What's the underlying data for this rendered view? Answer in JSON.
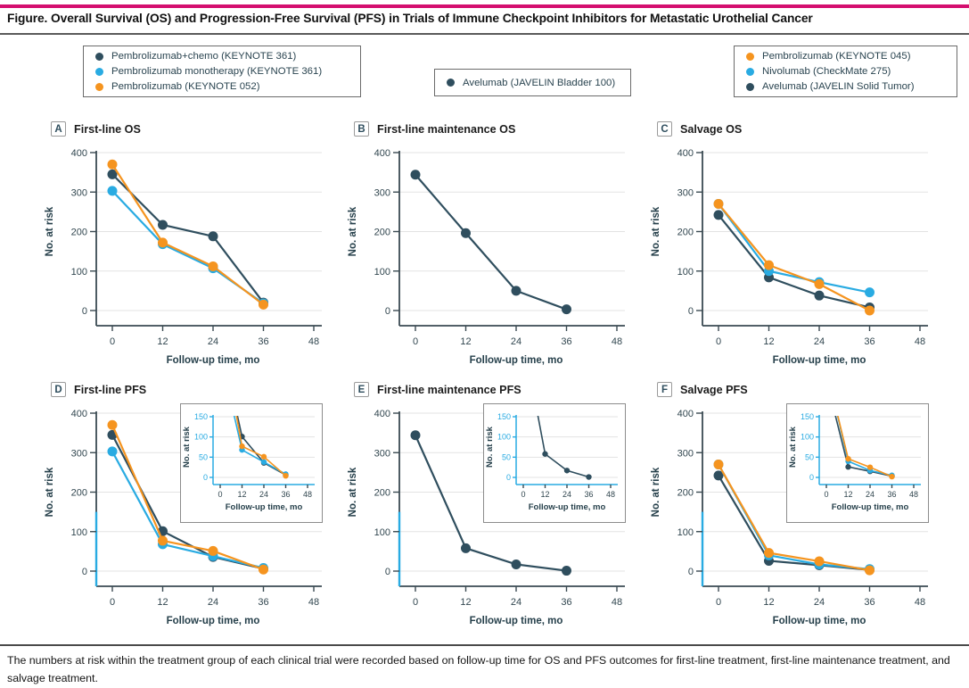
{
  "header": {
    "title": "Figure. Overall Survival (OS) and Progression-Free Survival (PFS) in Trials of Immune Checkpoint Inhibitors for Metastatic Urothelial Cancer"
  },
  "footnote": "The numbers at risk within the treatment group of each clinical trial were recorded based on follow-up time for OS and PFS outcomes for first-line treatment, first-line maintenance treatment, and salvage treatment.",
  "colors": {
    "navy": "#2f4e5e",
    "blue": "#29abe2",
    "orange": "#f5941f",
    "accent_rule": "#d40f6f",
    "grid": "#e3e3e3",
    "axis": "#3a4a52",
    "tick_text": "#31464f",
    "axis_label": "#26404b",
    "inset_axis": "#29abe2"
  },
  "legends": [
    {
      "position": "left",
      "items": [
        {
          "label": "Pembrolizumab+chemo (KEYNOTE 361)",
          "color": "navy"
        },
        {
          "label": "Pembrolizumab monotherapy (KEYNOTE 361)",
          "color": "blue"
        },
        {
          "label": "Pembrolizumab (KEYNOTE 052)",
          "color": "orange"
        }
      ]
    },
    {
      "position": "center",
      "items": [
        {
          "label": "Avelumab (JAVELIN Bladder 100)",
          "color": "navy"
        }
      ]
    },
    {
      "position": "right",
      "items": [
        {
          "label": "Pembrolizumab (KEYNOTE 045)",
          "color": "orange"
        },
        {
          "label": "Nivolumab (CheckMate 275)",
          "color": "blue"
        },
        {
          "label": "Avelumab (JAVELIN Solid Tumor)",
          "color": "navy"
        }
      ]
    }
  ],
  "chart_data": [
    {
      "type": "line",
      "panel": "A",
      "title": "First-line OS",
      "xlabel": "Follow-up time, mo",
      "ylabel": "No. at risk",
      "x": [
        0,
        12,
        24,
        36
      ],
      "xticks": [
        0,
        12,
        24,
        36,
        48
      ],
      "yticks": [
        0,
        100,
        200,
        300,
        400
      ],
      "ylim": [
        0,
        400
      ],
      "grid": "horizontal",
      "zoom_region": null,
      "inset": null,
      "series": [
        {
          "name": "Pembrolizumab+chemo (KEYNOTE 361)",
          "color": "navy",
          "values": [
            345,
            217,
            188,
            20
          ]
        },
        {
          "name": "Pembrolizumab monotherapy (KEYNOTE 361)",
          "color": "blue",
          "values": [
            303,
            168,
            107,
            18
          ]
        },
        {
          "name": "Pembrolizumab (KEYNOTE 052)",
          "color": "orange",
          "values": [
            370,
            172,
            112,
            15
          ]
        }
      ]
    },
    {
      "type": "line",
      "panel": "B",
      "title": "First-line maintenance OS",
      "xlabel": "Follow-up time, mo",
      "ylabel": "No. at risk",
      "x": [
        0,
        12,
        24,
        36
      ],
      "xticks": [
        0,
        12,
        24,
        36,
        48
      ],
      "yticks": [
        0,
        100,
        200,
        300,
        400
      ],
      "ylim": [
        0,
        400
      ],
      "grid": "horizontal",
      "zoom_region": null,
      "inset": null,
      "series": [
        {
          "name": "Avelumab (JAVELIN Bladder 100)",
          "color": "navy",
          "values": [
            344,
            196,
            50,
            3
          ]
        }
      ]
    },
    {
      "type": "line",
      "panel": "C",
      "title": "Salvage OS",
      "xlabel": "Follow-up time, mo",
      "ylabel": "No. at risk",
      "x": [
        0,
        12,
        24,
        36
      ],
      "xticks": [
        0,
        12,
        24,
        36,
        48
      ],
      "yticks": [
        0,
        100,
        200,
        300,
        400
      ],
      "ylim": [
        0,
        400
      ],
      "grid": "horizontal",
      "zoom_region": null,
      "inset": null,
      "series": [
        {
          "name": "Avelumab (JAVELIN Solid Tumor)",
          "color": "navy",
          "values": [
            242,
            84,
            38,
            8
          ]
        },
        {
          "name": "Nivolumab (CheckMate 275)",
          "color": "blue",
          "values": [
            270,
            100,
            72,
            46
          ]
        },
        {
          "name": "Pembrolizumab (KEYNOTE 045)",
          "color": "orange",
          "values": [
            270,
            115,
            67,
            0
          ]
        }
      ]
    },
    {
      "type": "line",
      "panel": "D",
      "title": "First-line PFS",
      "xlabel": "Follow-up time, mo",
      "ylabel": "No. at risk",
      "x": [
        0,
        12,
        24,
        36
      ],
      "xticks": [
        0,
        12,
        24,
        36,
        48
      ],
      "yticks": [
        0,
        100,
        200,
        300,
        400
      ],
      "ylim": [
        0,
        400
      ],
      "grid": "horizontal",
      "zoom_region": 150,
      "inset": {
        "ylim": [
          0,
          150
        ],
        "yticks": [
          0,
          50,
          100,
          150
        ],
        "xticks": [
          0,
          12,
          24,
          36,
          48
        ],
        "xlabel": "Follow-up time, mo",
        "ylabel": "No. at risk"
      },
      "series": [
        {
          "name": "Pembrolizumab+chemo (KEYNOTE 361)",
          "color": "navy",
          "values": [
            345,
            101,
            36,
            6
          ]
        },
        {
          "name": "Pembrolizumab monotherapy (KEYNOTE 361)",
          "color": "blue",
          "values": [
            303,
            68,
            38,
            8
          ]
        },
        {
          "name": "Pembrolizumab (KEYNOTE 052)",
          "color": "orange",
          "values": [
            370,
            77,
            51,
            4
          ]
        }
      ]
    },
    {
      "type": "line",
      "panel": "E",
      "title": "First-line maintenance PFS",
      "xlabel": "Follow-up time, mo",
      "ylabel": "No. at risk",
      "x": [
        0,
        12,
        24,
        36
      ],
      "xticks": [
        0,
        12,
        24,
        36,
        48
      ],
      "yticks": [
        0,
        100,
        200,
        300,
        400
      ],
      "ylim": [
        0,
        400
      ],
      "grid": "horizontal",
      "zoom_region": 150,
      "inset": {
        "ylim": [
          0,
          150
        ],
        "yticks": [
          0,
          50,
          100,
          150
        ],
        "xticks": [
          0,
          12,
          24,
          36,
          48
        ],
        "xlabel": "Follow-up time, mo",
        "ylabel": "No. at risk"
      },
      "series": [
        {
          "name": "Avelumab (JAVELIN Bladder 100)",
          "color": "navy",
          "values": [
            344,
            58,
            17,
            1
          ]
        }
      ]
    },
    {
      "type": "line",
      "panel": "F",
      "title": "Salvage PFS",
      "xlabel": "Follow-up time, mo",
      "ylabel": "No. at risk",
      "x": [
        0,
        12,
        24,
        36
      ],
      "xticks": [
        0,
        12,
        24,
        36,
        48
      ],
      "yticks": [
        0,
        100,
        200,
        300,
        400
      ],
      "ylim": [
        0,
        400
      ],
      "grid": "horizontal",
      "zoom_region": 150,
      "inset": {
        "ylim": [
          0,
          150
        ],
        "yticks": [
          0,
          50,
          100,
          150
        ],
        "xticks": [
          0,
          12,
          24,
          36,
          48
        ],
        "xlabel": "Follow-up time, mo",
        "ylabel": "No. at risk"
      },
      "series": [
        {
          "name": "Avelumab (JAVELIN Solid Tumor)",
          "color": "navy",
          "values": [
            242,
            26,
            15,
            3
          ]
        },
        {
          "name": "Nivolumab (CheckMate 275)",
          "color": "blue",
          "values": [
            270,
            40,
            17,
            5
          ]
        },
        {
          "name": "Pembrolizumab (KEYNOTE 045)",
          "color": "orange",
          "values": [
            270,
            46,
            25,
            2
          ]
        }
      ]
    }
  ]
}
